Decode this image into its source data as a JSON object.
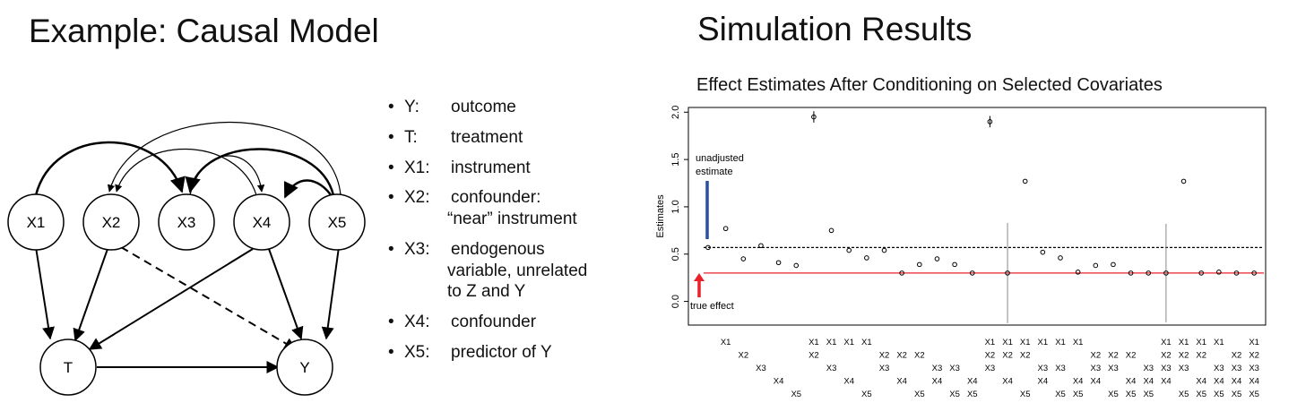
{
  "left_title": "Example: Causal Model",
  "right_title": "Simulation Results",
  "diagram": {
    "nodes": [
      "X1",
      "X2",
      "X3",
      "X4",
      "X5",
      "T",
      "Y"
    ]
  },
  "bullets": [
    {
      "term": "Y:",
      "text": "outcome",
      "cont": []
    },
    {
      "term": "T:",
      "text": "treatment",
      "cont": []
    },
    {
      "term": "X1:",
      "text": "instrument",
      "cont": []
    },
    {
      "term": "X2:",
      "text": "confounder:",
      "cont": [
        "“near” instrument"
      ]
    },
    {
      "term": "X3:",
      "text": "endogenous",
      "cont": [
        "variable, unrelated",
        "to Z and Y"
      ]
    },
    {
      "term": "X4:",
      "text": "confounder",
      "cont": []
    },
    {
      "term": "X5:",
      "text": "predictor of Y",
      "cont": []
    }
  ],
  "chart_data": {
    "type": "scatter",
    "title": "Effect Estimates After Conditioning on Selected Covariates",
    "ylabel": "Estimates",
    "ylim": [
      -0.25,
      2.05
    ],
    "yticks": [
      "0.0",
      "0.5",
      "1.0",
      "1.5",
      "2.0"
    ],
    "reference_lines": [
      {
        "label": "unadjusted estimate",
        "value": 0.57,
        "style": "dotted",
        "color": "#000000"
      },
      {
        "label": "true effect",
        "value": 0.3,
        "style": "solid",
        "color": "#e8212b"
      }
    ],
    "annotations": [
      "unadjusted estimate",
      "true effect"
    ],
    "annotation_colors": {
      "unadjusted": "#2a4fa3",
      "true": "#e8212b"
    },
    "points": [
      {
        "covariates": [],
        "value": 0.57,
        "err": 0
      },
      {
        "covariates": [
          "X1"
        ],
        "value": 0.77,
        "err": 0
      },
      {
        "covariates": [
          "X2"
        ],
        "value": 0.45,
        "err": 0
      },
      {
        "covariates": [
          "X3"
        ],
        "value": 0.59,
        "err": 0
      },
      {
        "covariates": [
          "X4"
        ],
        "value": 0.41,
        "err": 0
      },
      {
        "covariates": [
          "X5"
        ],
        "value": 0.38,
        "err": 0
      },
      {
        "covariates": [
          "X1",
          "X2"
        ],
        "value": 1.95,
        "err": 0.06
      },
      {
        "covariates": [
          "X1",
          "X3"
        ],
        "value": 0.75,
        "err": 0
      },
      {
        "covariates": [
          "X1",
          "X4"
        ],
        "value": 0.54,
        "err": 0
      },
      {
        "covariates": [
          "X1",
          "X5"
        ],
        "value": 0.46,
        "err": 0
      },
      {
        "covariates": [
          "X2",
          "X3"
        ],
        "value": 0.54,
        "err": 0
      },
      {
        "covariates": [
          "X2",
          "X4"
        ],
        "value": 0.3,
        "err": 0
      },
      {
        "covariates": [
          "X2",
          "X5"
        ],
        "value": 0.39,
        "err": 0
      },
      {
        "covariates": [
          "X3",
          "X4"
        ],
        "value": 0.45,
        "err": 0
      },
      {
        "covariates": [
          "X3",
          "X5"
        ],
        "value": 0.39,
        "err": 0
      },
      {
        "covariates": [
          "X4",
          "X5"
        ],
        "value": 0.3,
        "err": 0
      },
      {
        "covariates": [
          "X1",
          "X2",
          "X3"
        ],
        "value": 1.9,
        "err": 0.06
      },
      {
        "covariates": [
          "X1",
          "X2",
          "X4"
        ],
        "value": 0.3,
        "err": 0.53
      },
      {
        "covariates": [
          "X1",
          "X2",
          "X5"
        ],
        "value": 1.27,
        "err": 0
      },
      {
        "covariates": [
          "X1",
          "X3",
          "X4"
        ],
        "value": 0.52,
        "err": 0
      },
      {
        "covariates": [
          "X1",
          "X3",
          "X5"
        ],
        "value": 0.46,
        "err": 0
      },
      {
        "covariates": [
          "X1",
          "X4",
          "X5"
        ],
        "value": 0.31,
        "err": 0
      },
      {
        "covariates": [
          "X2",
          "X3",
          "X4"
        ],
        "value": 0.38,
        "err": 0
      },
      {
        "covariates": [
          "X2",
          "X3",
          "X5"
        ],
        "value": 0.39,
        "err": 0
      },
      {
        "covariates": [
          "X2",
          "X4",
          "X5"
        ],
        "value": 0.3,
        "err": 0
      },
      {
        "covariates": [
          "X3",
          "X4",
          "X5"
        ],
        "value": 0.3,
        "err": 0
      },
      {
        "covariates": [
          "X1",
          "X2",
          "X3",
          "X4"
        ],
        "value": 0.3,
        "err": 0.52
      },
      {
        "covariates": [
          "X1",
          "X2",
          "X3",
          "X5"
        ],
        "value": 1.27,
        "err": 0
      },
      {
        "covariates": [
          "X1",
          "X2",
          "X4",
          "X5"
        ],
        "value": 0.3,
        "err": 0
      },
      {
        "covariates": [
          "X1",
          "X3",
          "X4",
          "X5"
        ],
        "value": 0.31,
        "err": 0
      },
      {
        "covariates": [
          "X2",
          "X3",
          "X4",
          "X5"
        ],
        "value": 0.3,
        "err": 0
      },
      {
        "covariates": [
          "X1",
          "X2",
          "X3",
          "X4",
          "X5"
        ],
        "value": 0.3,
        "err": 0
      }
    ]
  }
}
